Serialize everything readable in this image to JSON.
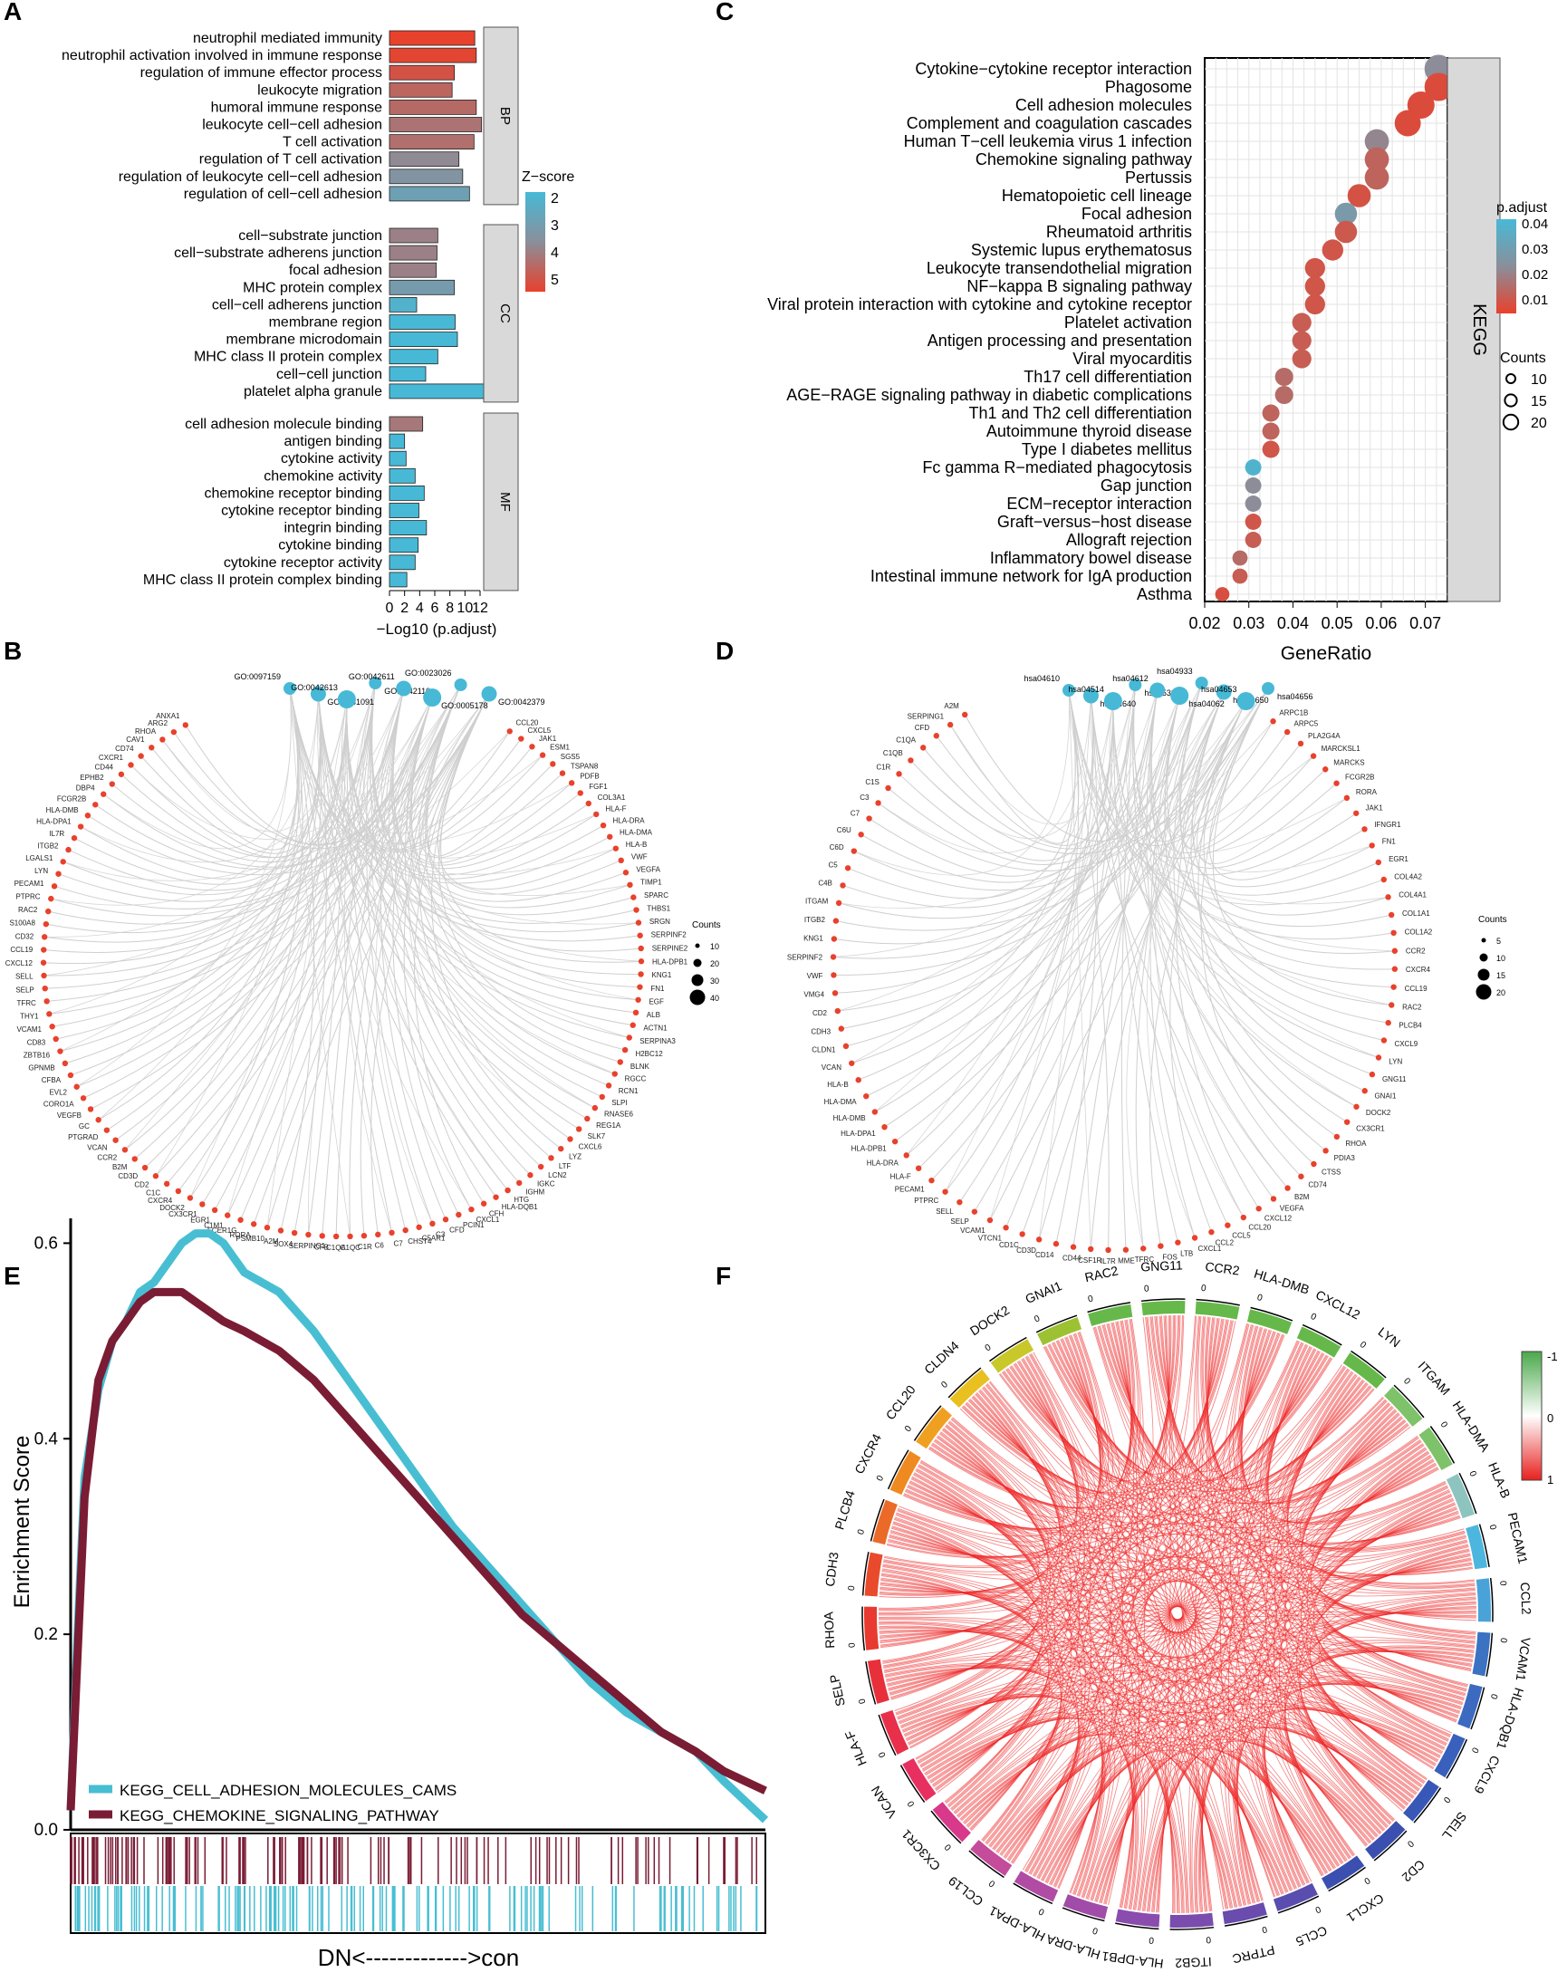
{
  "panel_labels": {
    "A": "A",
    "B": "B",
    "C": "C",
    "D": "D",
    "E": "E",
    "F": "F"
  },
  "colors": {
    "low_red": "#e8412c",
    "high_blue": "#47b9d6",
    "mid_gray": "#8a8f9a",
    "series_cyan": "#48bed3",
    "series_maroon": "#7a1c34",
    "chord_red": "#ee2a2a",
    "strip_gray": "#d9d9d9"
  },
  "chart_data": [
    {
      "panel": "A",
      "type": "bar",
      "orientation": "horizontal",
      "xlabel": "−Log10 (p.adjust)",
      "xticks": [
        0,
        2,
        4,
        6,
        8,
        10,
        12
      ],
      "xlim": [
        0,
        12
      ],
      "legend": {
        "title": "Z−score",
        "ticks": [
          2,
          3,
          4,
          5
        ],
        "placement": "right"
      },
      "groups": [
        {
          "name": "BP",
          "terms": [
            "neutrophil mediated immunity",
            "neutrophil activation involved in immune response",
            "regulation of immune effector process",
            "leukocyte migration",
            "humoral immune response",
            "leukocyte cell−cell adhesion",
            "T cell activation",
            "regulation of T cell activation",
            "regulation of leukocyte cell−cell adhesion",
            "regulation of cell−cell adhesion"
          ],
          "values": [
            11.3,
            11.5,
            8.6,
            8.3,
            11.5,
            12.2,
            11.2,
            9.2,
            9.7,
            10.6
          ],
          "zscore": [
            5.4,
            5.3,
            5.0,
            4.6,
            4.5,
            4.3,
            4.4,
            3.8,
            3.5,
            3.0
          ]
        },
        {
          "name": "CC",
          "terms": [
            "cell−substrate junction",
            "cell−substrate adherens junction",
            "focal adhesion",
            "MHC protein complex",
            "cell−cell adherens junction",
            "membrane region",
            "membrane microdomain",
            "MHC class II protein complex",
            "cell−cell junction",
            "platelet alpha granule"
          ],
          "values": [
            6.4,
            6.3,
            6.2,
            8.6,
            3.6,
            8.7,
            9.0,
            6.4,
            4.8,
            13.0
          ],
          "zscore": [
            4.0,
            4.0,
            4.0,
            3.2,
            2.3,
            2.0,
            2.0,
            2.0,
            2.0,
            2.0
          ]
        },
        {
          "name": "MF",
          "terms": [
            "cell adhesion molecule binding",
            "antigen binding",
            "cytokine activity",
            "chemokine activity",
            "chemokine receptor binding",
            "cytokine receptor binding",
            "integrin binding",
            "cytokine binding",
            "cytokine receptor activity",
            "MHC class II protein complex binding"
          ],
          "values": [
            4.4,
            2.0,
            2.2,
            3.4,
            4.6,
            3.9,
            4.9,
            3.8,
            3.4,
            2.3
          ],
          "zscore": [
            4.2,
            2.0,
            2.0,
            2.0,
            2.0,
            2.0,
            2.0,
            2.0,
            2.0,
            2.0
          ]
        }
      ]
    },
    {
      "panel": "C",
      "type": "scatter",
      "xlabel": "GeneRatio",
      "xticks": [
        "0.02",
        "0.03",
        "0.04",
        "0.05",
        "0.06",
        "0.07"
      ],
      "xlim": [
        0.02,
        0.075
      ],
      "strip_label": "KEGG",
      "legend_padj": {
        "title": "p.adjust",
        "ticks": [
          "0.04",
          "0.03",
          "0.02",
          "0.01"
        ],
        "placement": "right"
      },
      "legend_counts": {
        "title": "Counts",
        "ticks": [
          "10",
          "15",
          "20"
        ],
        "placement": "right"
      },
      "terms": [
        "Cytokine−cytokine receptor interaction",
        "Phagosome",
        "Cell adhesion molecules",
        "Complement and coagulation cascades",
        "Human T−cell leukemia virus 1 infection",
        "Chemokine signaling pathway",
        "Pertussis",
        "Hematopoietic cell lineage",
        "Focal adhesion",
        "Rheumatoid arthritis",
        "Systemic lupus erythematosus",
        "Leukocyte transendothelial migration",
        "NF−kappa B signaling pathway",
        "Viral protein interaction with cytokine and cytokine receptor",
        "Platelet activation",
        "Antigen processing and presentation",
        "Viral myocarditis",
        "Th17 cell differentiation",
        "AGE−RAGE signaling pathway in diabetic complications",
        "Th1 and Th2 cell differentiation",
        "Autoimmune thyroid disease",
        "Type I diabetes mellitus",
        "Fc gamma R−mediated phagocytosis",
        "Gap junction",
        "ECM−receptor interaction",
        "Graft−versus−host disease",
        "Allograft rejection",
        "Inflammatory bowel disease",
        "Intestinal immune network for IgA production",
        "Asthma"
      ],
      "generatio": [
        0.073,
        0.073,
        0.069,
        0.066,
        0.059,
        0.059,
        0.059,
        0.055,
        0.052,
        0.052,
        0.049,
        0.045,
        0.045,
        0.045,
        0.042,
        0.042,
        0.042,
        0.038,
        0.038,
        0.035,
        0.035,
        0.035,
        0.031,
        0.031,
        0.031,
        0.031,
        0.031,
        0.028,
        0.028,
        0.024
      ],
      "padj": [
        0.022,
        0.003,
        0.003,
        0.003,
        0.02,
        0.01,
        0.01,
        0.005,
        0.028,
        0.007,
        0.006,
        0.006,
        0.006,
        0.006,
        0.008,
        0.008,
        0.008,
        0.012,
        0.012,
        0.01,
        0.01,
        0.006,
        0.042,
        0.022,
        0.022,
        0.006,
        0.008,
        0.012,
        0.008,
        0.004
      ],
      "counts": [
        21,
        21,
        20,
        19,
        17,
        17,
        17,
        16,
        15,
        15,
        14,
        13,
        13,
        13,
        12,
        12,
        12,
        11,
        11,
        10,
        10,
        10,
        9,
        9,
        9,
        9,
        9,
        8,
        8,
        7
      ]
    },
    {
      "panel": "B",
      "type": "network",
      "legend": {
        "title": "Counts",
        "ticks": [
          "10",
          "20",
          "30",
          "40"
        ]
      },
      "hubs": [
        "GO:0097159",
        "GO:0031091",
        "GO:0042613",
        "GO:0042110",
        "GO:0042611",
        "GO:0005178",
        "GO:0023026",
        "GO:0042379"
      ],
      "genes": [
        "CCL20",
        "CXCL5",
        "JAK1",
        "ESM1",
        "SGS5",
        "TSPAN8",
        "PDFB",
        "FGF1",
        "COL3A1",
        "HLA-F",
        "HLA-DRA",
        "HLA-DMA",
        "HLA-B",
        "VWF",
        "VEGFA",
        "TIMP1",
        "SPARC",
        "THBS1",
        "SRGN",
        "SERPINF2",
        "SERPINE2",
        "HLA-DPB1",
        "KNG1",
        "FN1",
        "EGF",
        "ALB",
        "ACTN1",
        "SERPINA3",
        "H2BC12",
        "BLNK",
        "RGCC",
        "RCN1",
        "SLPI",
        "RNASE6",
        "REG1A",
        "SLK7",
        "CXCL6",
        "LYZ",
        "LTF",
        "LCN2",
        "IGKC",
        "IGHM",
        "HTG",
        "HLA-DQB1",
        "CFH",
        "CXCL1",
        "PCIN1",
        "CFD",
        "C3",
        "C5AR1",
        "CHST4",
        "C7",
        "C6",
        "C1R",
        "C1QC",
        "C1QA",
        "CFB",
        "SERPING1",
        "SOX4",
        "A2M",
        "PSMB10",
        "RORA",
        "FCER1G",
        "C1M1",
        "EGR1",
        "CX3CR1",
        "DOCK2",
        "CXCR4",
        "C1C",
        "CD2",
        "CD3D",
        "B2M",
        "CCR2",
        "VCAN",
        "PTGRAD",
        "GC",
        "VEGFB",
        "CORO1A",
        "EVL2",
        "CFBA",
        "GPNMB",
        "ZBTB16",
        "CD83",
        "VCAM1",
        "THY1",
        "TFRC",
        "SELP",
        "SELL",
        "CXCL12",
        "CCL19",
        "CD32",
        "S100A8",
        "RAC2",
        "PTPRC",
        "PECAM1",
        "LYN",
        "LGALS1",
        "ITGB2",
        "IL7R",
        "HLA-DPA1",
        "HLA-DMB",
        "FCGR2B",
        "DBP4",
        "EPHB2",
        "CD44",
        "CXCR1",
        "CD74",
        "CAV1",
        "RHOA",
        "ARG2",
        "ANXA1"
      ]
    },
    {
      "panel": "D",
      "type": "network",
      "legend": {
        "title": "Counts",
        "ticks": [
          "5",
          "10",
          "15",
          "20"
        ]
      },
      "hubs": [
        "hsa04610",
        "hsa04640",
        "hsa04514",
        "hsa05323",
        "hsa04612",
        "hsa04062",
        "hsa04933",
        "hsa04650",
        "hsa04653",
        "hsa04656"
      ],
      "genes": [
        "ARPC1B",
        "ARPC5",
        "PLA2G4A",
        "MARCKSL1",
        "MARCKS",
        "FCGR2B",
        "RORA",
        "JAK1",
        "IFNGR1",
        "FN1",
        "EGR1",
        "COL4A2",
        "COL4A1",
        "COL1A1",
        "COL1A2",
        "CCR2",
        "CXCR4",
        "CCL19",
        "RAC2",
        "PLCB4",
        "CXCL9",
        "LYN",
        "GNG11",
        "GNAI1",
        "DOCK2",
        "CX3CR1",
        "RHOA",
        "PDIA3",
        "CTSS",
        "CD74",
        "B2M",
        "VEGFA",
        "CXCL12",
        "CCL20",
        "CCL5",
        "CCL2",
        "CXCL1",
        "LTB",
        "FOS",
        "TFRC",
        "MME",
        "IL7R",
        "CSF1R",
        "CD44",
        "CD14",
        "CD3D",
        "CD1C",
        "VTCN1",
        "VCAM1",
        "SELP",
        "SELL",
        "PTPRC",
        "PECAM1",
        "HLA-F",
        "HLA-DRA",
        "HLA-DPB1",
        "HLA-DPA1",
        "HLA-DMB",
        "HLA-DMA",
        "HLA-B",
        "VCAN",
        "CLDN1",
        "CDH3",
        "CD2",
        "VMG4",
        "VWF",
        "SERPINF2",
        "KNG1",
        "ITGB2",
        "ITGAM",
        "C4B",
        "C5",
        "C6D",
        "C6U",
        "C7",
        "C3",
        "C1S",
        "C1R",
        "C1QB",
        "C1QA",
        "CFD",
        "SERPING1",
        "A2M"
      ]
    },
    {
      "panel": "E",
      "type": "line",
      "ylabel": "Enrichment Score",
      "xlabel": "DN<------------->con",
      "yticks": [
        "0.0",
        "0.2",
        "0.4",
        "0.6"
      ],
      "ylim": [
        0,
        0.63
      ],
      "legend_placement": "bottom-left",
      "series": [
        {
          "name": "KEGG_CELL_ADHESION_MOLECULES_CAMS",
          "x": [
            0,
            0.01,
            0.02,
            0.04,
            0.06,
            0.08,
            0.1,
            0.12,
            0.14,
            0.16,
            0.18,
            0.2,
            0.22,
            0.25,
            0.3,
            0.35,
            0.4,
            0.45,
            0.5,
            0.55,
            0.6,
            0.65,
            0.7,
            0.75,
            0.8,
            0.85,
            0.9,
            0.94,
            0.97,
            1.0
          ],
          "values": [
            0.02,
            0.2,
            0.36,
            0.45,
            0.5,
            0.52,
            0.55,
            0.56,
            0.58,
            0.6,
            0.61,
            0.61,
            0.6,
            0.57,
            0.55,
            0.51,
            0.46,
            0.41,
            0.36,
            0.31,
            0.27,
            0.23,
            0.19,
            0.15,
            0.12,
            0.1,
            0.08,
            0.05,
            0.03,
            0.01
          ]
        },
        {
          "name": "KEGG_CHEMOKINE_SIGNALING_PATHWAY",
          "x": [
            0,
            0.01,
            0.02,
            0.04,
            0.06,
            0.08,
            0.1,
            0.12,
            0.14,
            0.16,
            0.18,
            0.2,
            0.22,
            0.25,
            0.3,
            0.35,
            0.4,
            0.45,
            0.5,
            0.55,
            0.6,
            0.65,
            0.7,
            0.75,
            0.8,
            0.85,
            0.9,
            0.94,
            0.97,
            1.0
          ],
          "values": [
            0.02,
            0.18,
            0.34,
            0.46,
            0.5,
            0.52,
            0.54,
            0.55,
            0.55,
            0.55,
            0.54,
            0.53,
            0.52,
            0.51,
            0.49,
            0.46,
            0.42,
            0.38,
            0.34,
            0.3,
            0.26,
            0.22,
            0.19,
            0.16,
            0.13,
            0.1,
            0.08,
            0.06,
            0.05,
            0.04
          ]
        }
      ]
    },
    {
      "panel": "F",
      "type": "chord",
      "legend": {
        "ticks": [
          "-1",
          "0",
          "1"
        ],
        "placement": "right"
      },
      "tick_mark": "0",
      "sectors": [
        "RAC2",
        "GNG11",
        "CCR2",
        "HLA-DMB",
        "CXCL12",
        "LYN",
        "ITGAM",
        "HLA-DMA",
        "HLA-B",
        "PECAM1",
        "CCL2",
        "VCAM1",
        "HLA-DQB1",
        "CXCL9",
        "SELL",
        "CD2",
        "CXCL1",
        "CCL5",
        "PTPRC",
        "ITGB2",
        "HLA-DPB1",
        "HLA-DRA",
        "HLA-DPA1",
        "CCL19",
        "CX3CR1",
        "VCAN",
        "HLA-F",
        "SELP",
        "RHOA",
        "CDH3",
        "PLCB4",
        "CXCR4",
        "CCL20",
        "CLDN4",
        "DOCK2",
        "GNAI1"
      ],
      "sector_colors": [
        "#66b84a",
        "#66b84a",
        "#66b84a",
        "#66b84a",
        "#66b84a",
        "#66b84a",
        "#7ec26a",
        "#7ec26a",
        "#8ec4c0",
        "#4db6de",
        "#4aa3d8",
        "#3b72c2",
        "#3b6ac0",
        "#3860bc",
        "#3858b8",
        "#3a4fb0",
        "#3a4fb0",
        "#5a4db0",
        "#6a4cae",
        "#7a4cae",
        "#8a4cae",
        "#a04ca8",
        "#b04ca4",
        "#c44c9a",
        "#d8398a",
        "#e83060",
        "#e8304a",
        "#e8303a",
        "#e83a30",
        "#ea4a2c",
        "#ec6a28",
        "#ef8a20",
        "#f0a020",
        "#e8c020",
        "#c8c82a",
        "#9cc234"
      ]
    }
  ]
}
